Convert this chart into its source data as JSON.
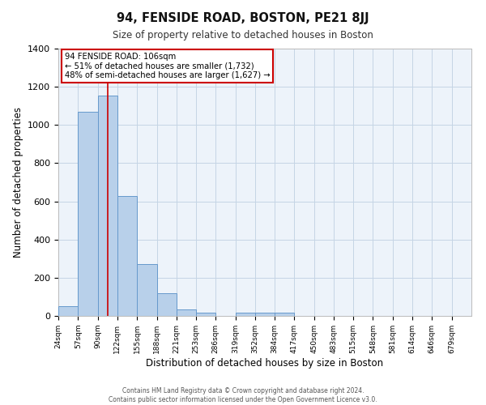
{
  "title": "94, FENSIDE ROAD, BOSTON, PE21 8JJ",
  "subtitle": "Size of property relative to detached houses in Boston",
  "xlabel": "Distribution of detached houses by size in Boston",
  "ylabel": "Number of detached properties",
  "bin_labels": [
    "24sqm",
    "57sqm",
    "90sqm",
    "122sqm",
    "155sqm",
    "188sqm",
    "221sqm",
    "253sqm",
    "286sqm",
    "319sqm",
    "352sqm",
    "384sqm",
    "417sqm",
    "450sqm",
    "483sqm",
    "515sqm",
    "548sqm",
    "581sqm",
    "614sqm",
    "646sqm",
    "679sqm"
  ],
  "bin_edges": [
    24,
    57,
    90,
    122,
    155,
    188,
    221,
    253,
    286,
    319,
    352,
    384,
    417,
    450,
    483,
    515,
    548,
    581,
    614,
    646,
    679,
    712
  ],
  "bar_heights": [
    50,
    1070,
    1155,
    630,
    270,
    120,
    35,
    15,
    0,
    15,
    15,
    15,
    0,
    0,
    0,
    0,
    0,
    0,
    0,
    0,
    0
  ],
  "bar_color": "#b8d0ea",
  "bar_edgecolor": "#6699cc",
  "ylim": [
    0,
    1400
  ],
  "yticks": [
    0,
    200,
    400,
    600,
    800,
    1000,
    1200,
    1400
  ],
  "grid_color": "#c5d5e5",
  "bg_color": "#edf3fa",
  "red_line_x": 106,
  "annotation_title": "94 FENSIDE ROAD: 106sqm",
  "annotation_line1": "← 51% of detached houses are smaller (1,732)",
  "annotation_line2": "48% of semi-detached houses are larger (1,627) →",
  "annotation_box_facecolor": "#ffffff",
  "annotation_box_edgecolor": "#cc0000",
  "footnote1": "Contains HM Land Registry data © Crown copyright and database right 2024.",
  "footnote2": "Contains public sector information licensed under the Open Government Licence v3.0."
}
